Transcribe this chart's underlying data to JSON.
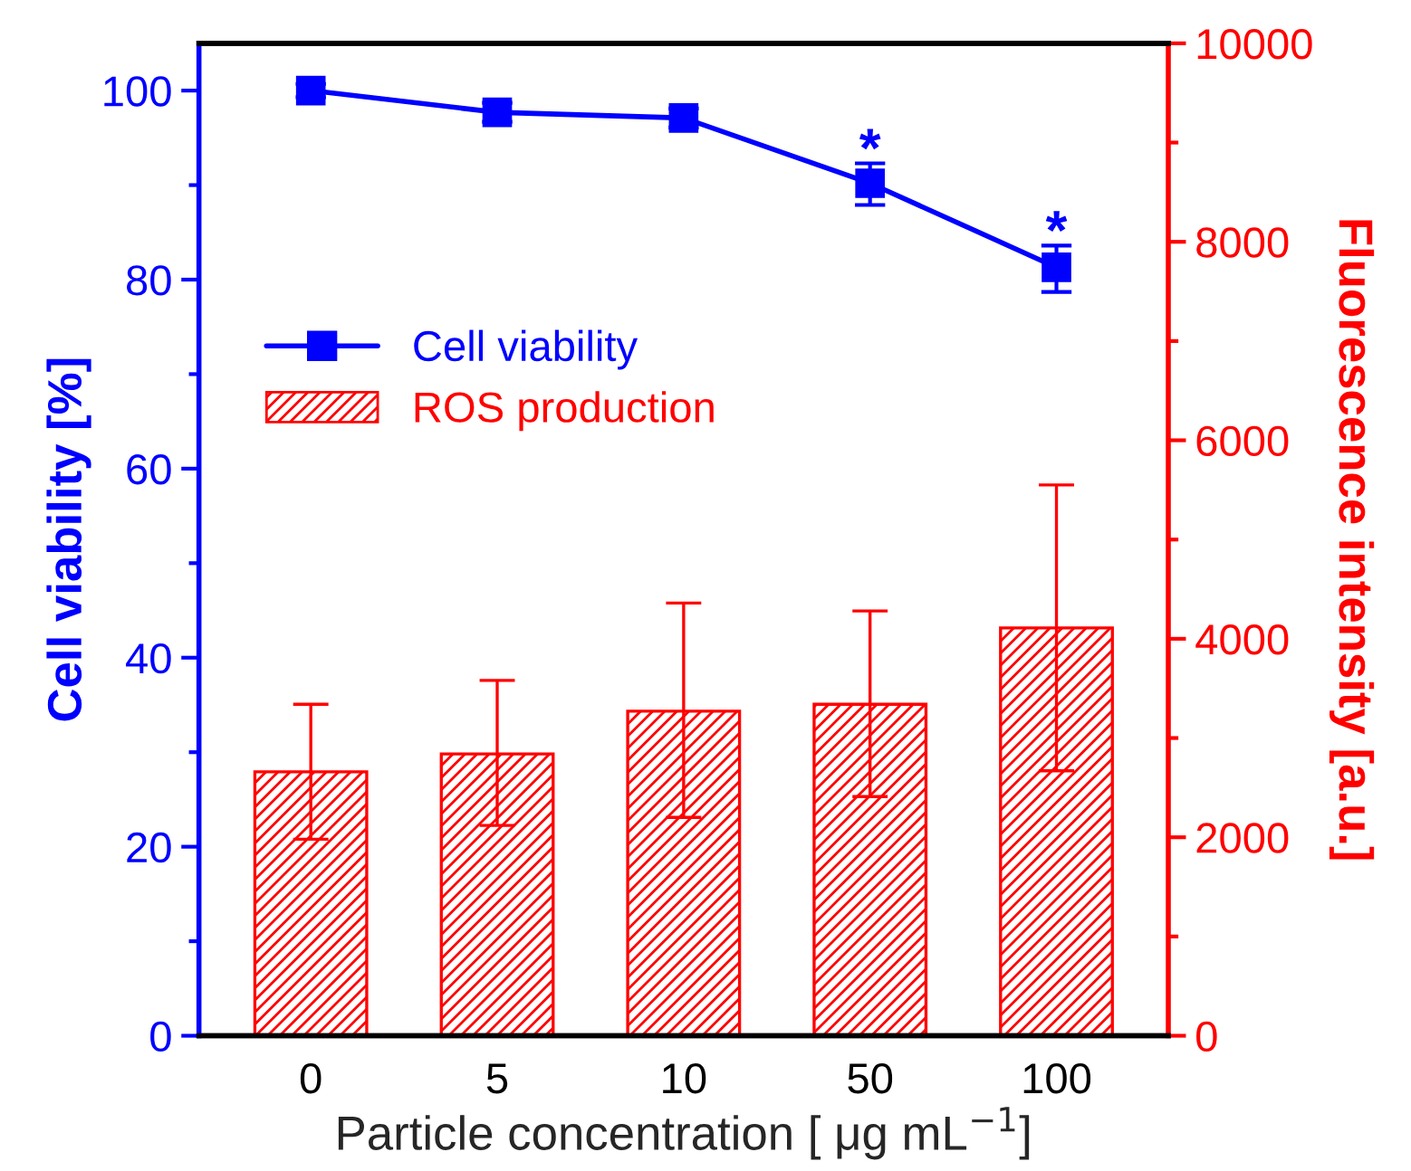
{
  "chart_data": {
    "type": "bar",
    "xlabel": "Particle concentration [ μg mL$^{−1}$]",
    "ylabel": "Cell viability [%]",
    "y2label": "Fluorescence intensity [a.u.]",
    "categories": [
      "0",
      "5",
      "10",
      "50",
      "100"
    ],
    "series": [
      {
        "name": "Cell viability",
        "type": "line",
        "color": "#0000ff",
        "values": [
          100,
          97.7,
          97.1,
          90.2,
          81.3
        ],
        "errors": [
          0.7,
          1.0,
          1.0,
          [
            87.9,
            92.3
          ],
          [
            78.7,
            83.6
          ]
        ],
        "marker": "square",
        "line_style": "solid"
      },
      {
        "name": "ROS production",
        "axis": "y2",
        "color": "#ff0000",
        "values": [
          2660,
          2840,
          3270,
          3340,
          4110
        ],
        "errors": [
          [
            1980,
            3340
          ],
          [
            2120,
            3580
          ],
          [
            2200,
            4360
          ],
          [
            2410,
            4280
          ],
          [
            2670,
            5550
          ]
        ]
      }
    ],
    "ylim": [
      0,
      105
    ],
    "yticks": [
      0,
      {
        "value": 10,
        "label": null
      },
      20,
      {
        "value": 30,
        "label": null
      },
      40,
      {
        "value": 50,
        "label": null
      },
      60,
      {
        "value": 70,
        "label": null
      },
      80,
      {
        "value": 90,
        "label": null
      },
      100
    ],
    "y2lim": [
      0,
      10000
    ],
    "y2ticks": [
      0,
      {
        "value": 1000,
        "label": null
      },
      2000,
      {
        "value": 3000,
        "label": null
      },
      4000,
      {
        "value": 5000,
        "label": null
      },
      6000,
      {
        "value": 7000,
        "label": null
      },
      8000,
      {
        "value": 9000,
        "label": null
      },
      10000
    ],
    "annotations": [
      {
        "text": "*",
        "x": "50",
        "y": 92.3
      },
      {
        "text": "*",
        "x": "100",
        "y": 83.6
      }
    ],
    "legend": "top left",
    "grid": false
  }
}
